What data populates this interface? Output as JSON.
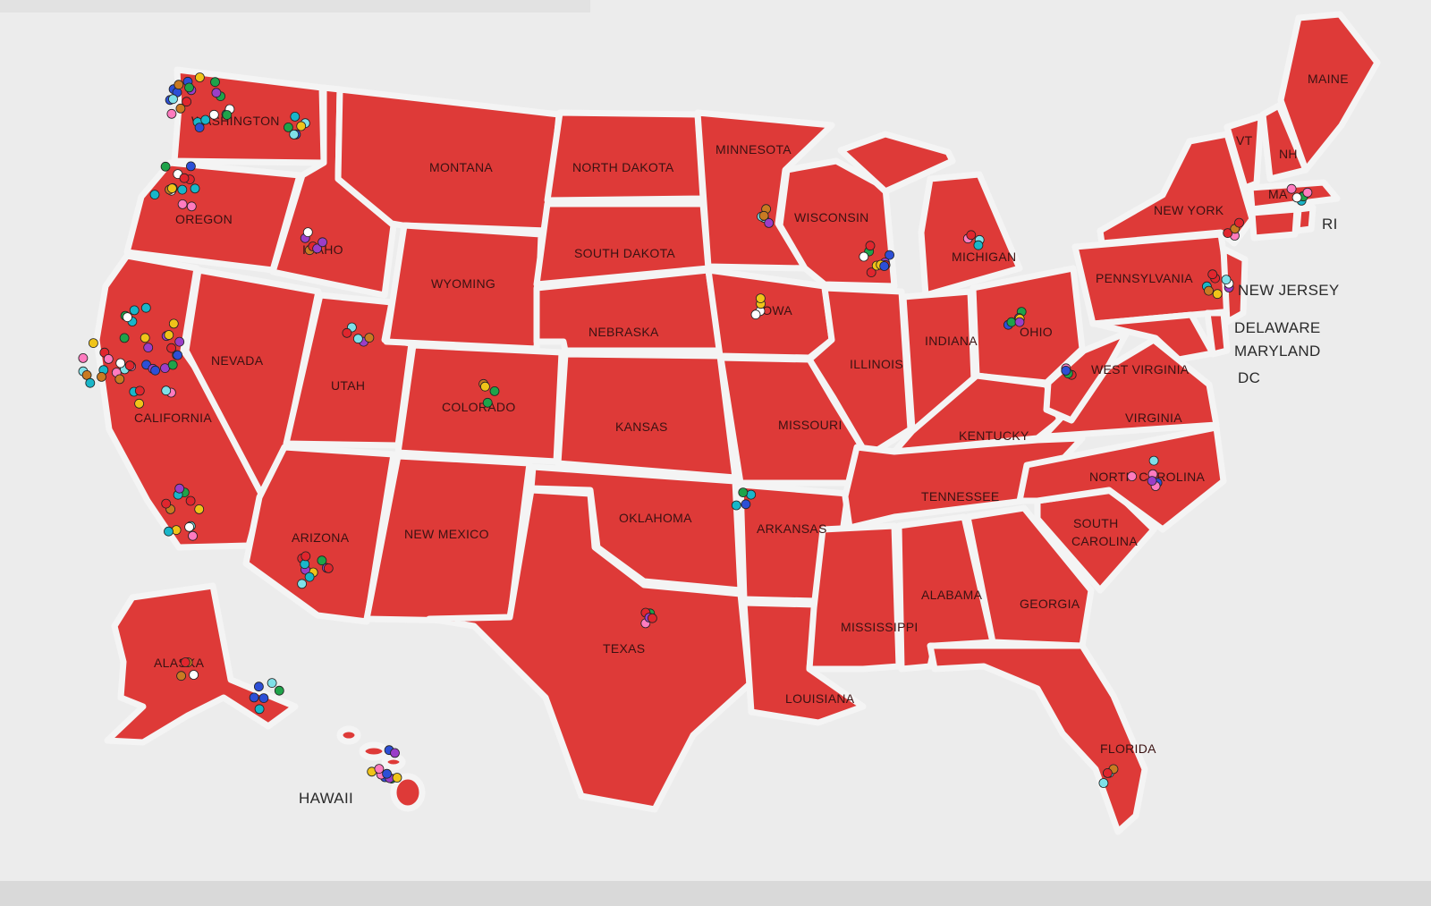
{
  "colors": {
    "map_fill": "#de3a38",
    "border": "#f4f4f4",
    "background": "#ececec",
    "pin_palette": [
      "#e0262e",
      "#2d4fd6",
      "#1fa34a",
      "#f0c419",
      "#9b3ec8",
      "#19b6c9",
      "#ff7bbf",
      "#c97a22",
      "#7fe0e8",
      "#ffffff"
    ]
  },
  "map": {
    "subject": "United States map with push pins",
    "labels": {
      "maine": "MAINE",
      "vt": "VT",
      "nh": "NH",
      "ma": "MA",
      "ri": "RI",
      "new_york": "NEW YORK",
      "pennsylvania": "PENNSYLVANIA",
      "new_jersey": "NEW JERSEY",
      "delaware": "DELAWARE",
      "maryland": "MARYLAND",
      "dc": "DC",
      "washington": "WASHINGTON",
      "oregon": "OREGON",
      "idaho": "IDAHO",
      "montana": "MONTANA",
      "north_dakota": "NORTH DAKOTA",
      "minnesota": "MINNESOTA",
      "wisconsin": "WISCONSIN",
      "michigan": "MICHIGAN",
      "south_dakota": "SOUTH DAKOTA",
      "wyoming": "WYOMING",
      "nebraska": "NEBRASKA",
      "iowa": "IOWA",
      "illinois": "ILLINOIS",
      "indiana": "INDIANA",
      "ohio": "OHIO",
      "west_virginia": "WEST VIRGINIA",
      "virginia": "VIRGINIA",
      "nevada": "NEVADA",
      "utah": "UTAH",
      "colorado": "COLORADO",
      "kansas": "KANSAS",
      "missouri": "MISSOURI",
      "kentucky": "KENTUCKY",
      "california": "CALIFORNIA",
      "arizona": "ARIZONA",
      "new_mexico": "NEW MEXICO",
      "oklahoma": "OKLAHOMA",
      "arkansas": "ARKANSAS",
      "tennessee": "TENNESSEE",
      "north_carolina": "NORTH CAROLINA",
      "south_carolina_1": "SOUTH",
      "south_carolina_2": "CAROLINA",
      "texas": "TEXAS",
      "louisiana": "LOUISIANA",
      "mississippi": "MISSISSIPPI",
      "alabama": "ALABAMA",
      "georgia": "GEORGIA",
      "florida": "FLORIDA",
      "alaska": "ALASKA",
      "hawaii": "HAWAII"
    }
  }
}
